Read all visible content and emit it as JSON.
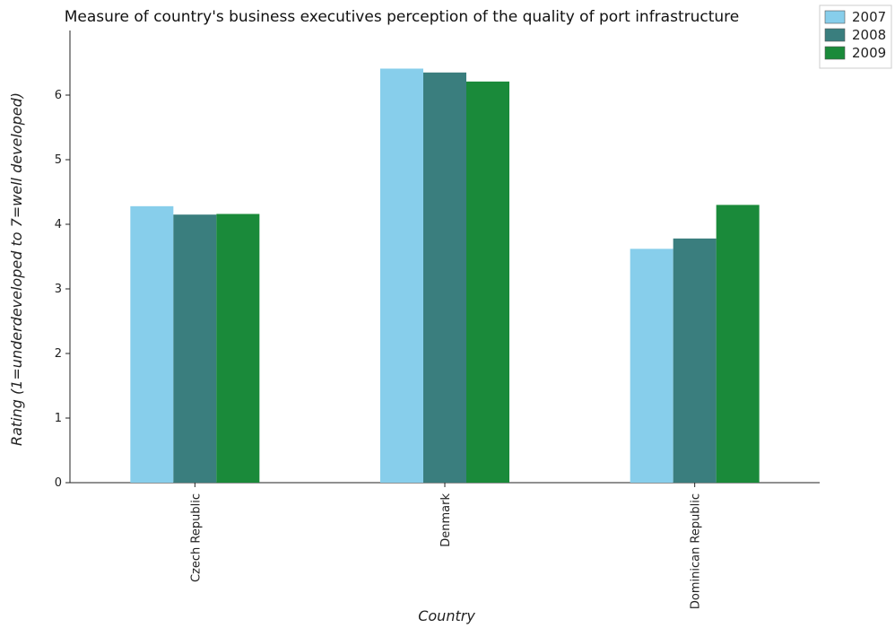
{
  "chart_data": {
    "type": "bar",
    "title": "Measure of country's business executives perception of the quality of port infrastructure",
    "xlabel": "Country",
    "ylabel": "Rating (1=underdeveloped to 7=well developed)",
    "categories": [
      "Czech Republic",
      "Denmark",
      "Dominican Republic"
    ],
    "series": [
      {
        "name": "2007",
        "color": "#87ceeb",
        "values": [
          4.28,
          6.41,
          3.62
        ]
      },
      {
        "name": "2008",
        "color": "#3a7e7e",
        "values": [
          4.15,
          6.35,
          3.78
        ]
      },
      {
        "name": "2009",
        "color": "#1a8a3a",
        "values": [
          4.16,
          6.21,
          4.3
        ]
      }
    ],
    "ylim": [
      0,
      7
    ],
    "yticks": [
      "0",
      "1",
      "2",
      "3",
      "4",
      "5",
      "6"
    ],
    "grid": false,
    "legend_position": "top-right"
  }
}
